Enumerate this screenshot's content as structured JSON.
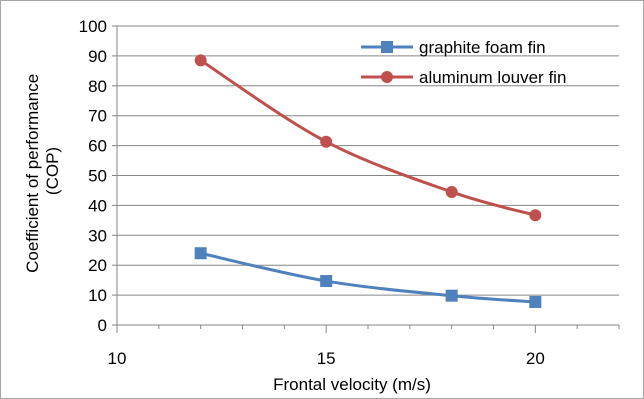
{
  "chart_data": {
    "type": "line",
    "title": "",
    "xlabel": "Frontal velocity (m/s)",
    "ylabel": "Coefficient of performance (COP)",
    "ylabel_lines": [
      "Coefficient of performance",
      "(COP)"
    ],
    "xlim": [
      10,
      22
    ],
    "ylim": [
      0,
      100
    ],
    "x_major_ticks": [
      10,
      15,
      20
    ],
    "x_minor_ticks": [
      11,
      12,
      13,
      14,
      16,
      17,
      18,
      19,
      21,
      22
    ],
    "y_ticks": [
      0,
      10,
      20,
      30,
      40,
      50,
      60,
      70,
      80,
      90,
      100
    ],
    "grid": "horizontal",
    "legend_position": "top-right",
    "series": [
      {
        "name": "graphite foam fin",
        "color": "#4f81bd",
        "marker": "square",
        "x": [
          12,
          15,
          18,
          20
        ],
        "values": [
          24,
          14.7,
          9.8,
          7.7
        ]
      },
      {
        "name": "aluminum louver fin",
        "color": "#c0504d",
        "marker": "circle",
        "x": [
          12,
          15,
          18,
          20
        ],
        "values": [
          88.5,
          61.3,
          44.5,
          36.7
        ]
      }
    ]
  }
}
